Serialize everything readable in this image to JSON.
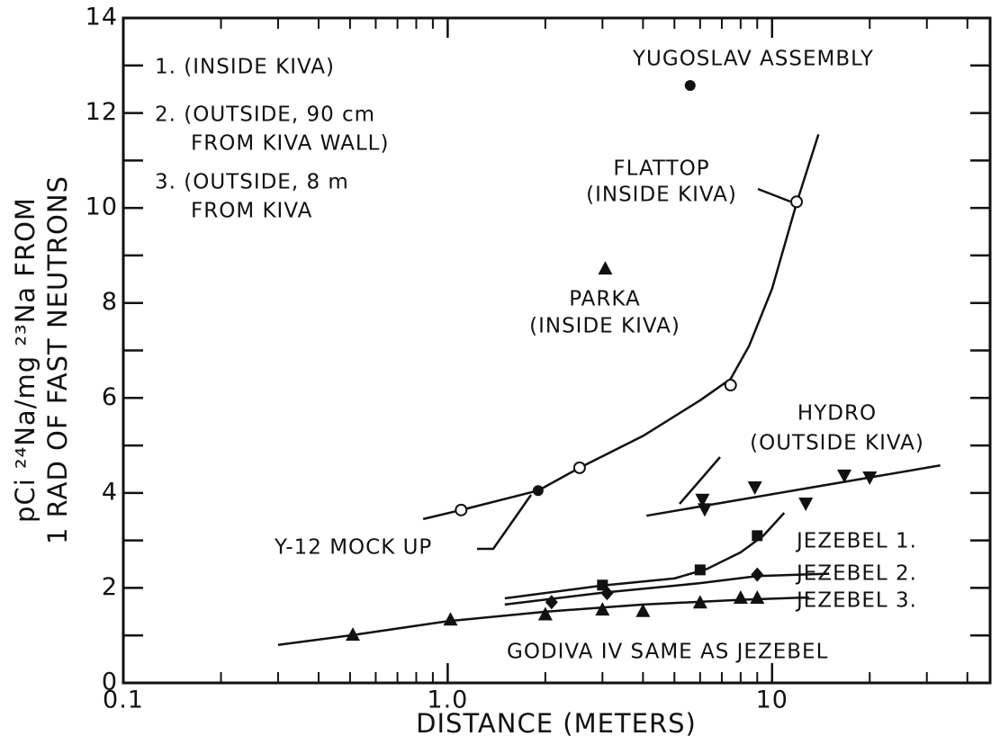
{
  "chart_data": {
    "type": "scatter",
    "xlabel": "DISTANCE (METERS)",
    "ylabel": [
      "pCi ²⁴Na/mg ²³Na FROM",
      "1 RAD OF FAST NEUTRONS"
    ],
    "xscale": "log",
    "xlim": [
      0.1,
      47
    ],
    "ylim": [
      0,
      14
    ],
    "xticks": [
      0.1,
      {
        "value": 1,
        "label": "1.0"
      },
      10
    ],
    "xminorticks": [
      0.2,
      0.3,
      0.4,
      0.5,
      0.6,
      0.7,
      0.8,
      0.9,
      2,
      3,
      4,
      5,
      6,
      7,
      8,
      9,
      20,
      30,
      40
    ],
    "yticks": [
      0,
      2,
      4,
      6,
      8,
      10,
      12,
      14
    ],
    "yminorticks": [
      1,
      3,
      5,
      7,
      9,
      11,
      13
    ],
    "color": "#111111",
    "series": [
      {
        "name": "FLATTOP",
        "marker": "open-circle",
        "x": [
          1.1,
          2.55,
          7.45,
          11.9
        ],
        "values": [
          3.64,
          4.53,
          6.27,
          10.13
        ]
      },
      {
        "name": "Y-12 MOCK UP",
        "marker": "circle",
        "x": [
          1.9
        ],
        "values": [
          4.05
        ]
      },
      {
        "name": "YUGOSLAV ASSEMBLY",
        "marker": "circle",
        "x": [
          5.59
        ],
        "values": [
          12.58
        ]
      },
      {
        "name": "PARKA",
        "marker": "triangle",
        "x": [
          3.06
        ],
        "values": [
          8.73
        ]
      },
      {
        "name": "HYDRO",
        "marker": "triangle-down",
        "x": [
          6.1,
          6.2,
          8.85,
          12.7,
          16.7,
          20
        ],
        "values": [
          3.85,
          3.65,
          4.11,
          3.77,
          4.36,
          4.32
        ]
      },
      {
        "name": "JEZEBEL 1.",
        "marker": "square",
        "x": [
          3.0,
          6.0,
          9.0
        ],
        "values": [
          2.06,
          2.38,
          3.1
        ]
      },
      {
        "name": "JEZEBEL 2.",
        "marker": "diamond",
        "x": [
          2.09,
          3.1,
          9.0
        ],
        "values": [
          1.7,
          1.89,
          2.28
        ]
      },
      {
        "name": "JEZEBEL 3.",
        "marker": "triangle",
        "x": [
          0.51,
          1.02,
          2.0,
          3.0,
          4.0,
          6.0,
          8.0,
          9.0
        ],
        "values": [
          1.02,
          1.34,
          1.45,
          1.55,
          1.52,
          1.7,
          1.8,
          1.8
        ]
      }
    ],
    "curves": [
      {
        "x": [
          0.84,
          1.1,
          1.9,
          2.55,
          4,
          6,
          7.45,
          8.5,
          10,
          11.9,
          13.9
        ],
        "values": [
          3.45,
          3.64,
          4.05,
          4.53,
          5.2,
          5.95,
          6.4,
          7.1,
          8.3,
          10.1,
          11.55
        ]
      },
      {
        "x": [
          4.1,
          33
        ],
        "values": [
          3.52,
          4.58
        ]
      },
      {
        "x": [
          1.5,
          3,
          5,
          6.3,
          8,
          9.4,
          10.9
        ],
        "values": [
          1.78,
          2.05,
          2.2,
          2.4,
          2.75,
          3.1,
          3.58
        ]
      },
      {
        "x": [
          1.5,
          3,
          6,
          9,
          15
        ],
        "values": [
          1.65,
          1.9,
          2.1,
          2.25,
          2.3
        ]
      },
      {
        "x": [
          0.3,
          0.5,
          1,
          2,
          4,
          8,
          13
        ],
        "values": [
          0.8,
          1.0,
          1.3,
          1.5,
          1.65,
          1.75,
          1.8
        ]
      }
    ],
    "annotations": [
      "1. (INSIDE KIVA)",
      "2. (OUTSIDE, 90 cm",
      "FROM KIVA WALL)",
      "3. (OUTSIDE, 8 m",
      "FROM KIVA",
      "YUGOSLAV ASSEMBLY",
      "FLATTOP",
      "(INSIDE KIVA)",
      "PARKA",
      "(INSIDE KIVA)",
      "HYDRO",
      "(OUTSIDE KIVA)",
      "Y-12 MOCK UP",
      "JEZEBEL 1.",
      "JEZEBEL 2.",
      "JEZEBEL 3.",
      "GODIVA IV SAME AS JEZEBEL"
    ]
  }
}
